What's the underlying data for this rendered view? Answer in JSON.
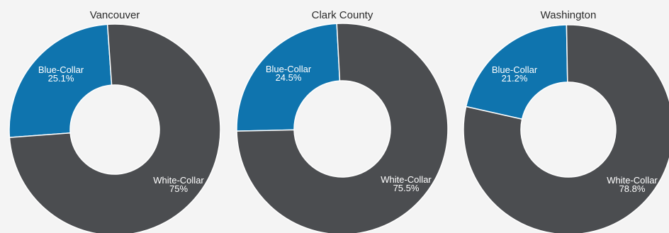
{
  "chart_data": [
    {
      "type": "pie",
      "title": "Vancouver",
      "categories": [
        "Blue-Collar",
        "White-Collar"
      ],
      "values": [
        25.1,
        75
      ],
      "labels": [
        "25.1%",
        "75%"
      ]
    },
    {
      "type": "pie",
      "title": "Clark County",
      "categories": [
        "Blue-Collar",
        "White-Collar"
      ],
      "values": [
        24.5,
        75.5
      ],
      "labels": [
        "24.5%",
        "75.5%"
      ]
    },
    {
      "type": "pie",
      "title": "Washington",
      "categories": [
        "Blue-Collar",
        "White-Collar"
      ],
      "values": [
        21.2,
        78.8
      ],
      "labels": [
        "21.2%",
        "78.8%"
      ]
    }
  ],
  "colors": {
    "blue_collar": "#0f74ae",
    "white_collar": "#4b4d50",
    "background": "#f4f4f4"
  }
}
